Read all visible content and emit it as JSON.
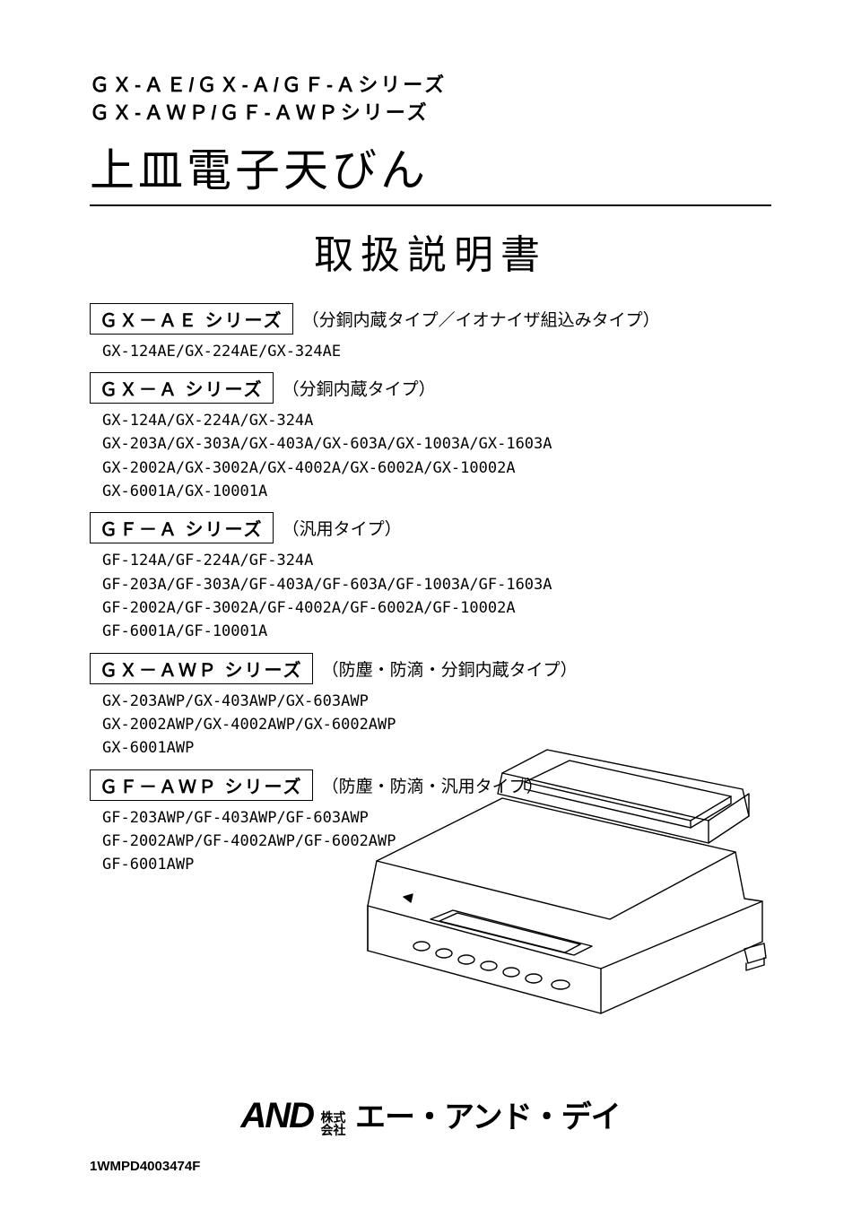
{
  "header": {
    "series_line1": "ＧＸ-ＡＥ/ＧＸ-Ａ/ＧＦ-Ａシリーズ",
    "series_line2": "ＧＸ-ＡＷＰ/ＧＦ-ＡＷＰシリーズ",
    "product_title": "上皿電子天びん",
    "manual_label": "取扱説明書"
  },
  "sections": [
    {
      "box": "ＧＸ－ＡＥ シリーズ",
      "desc": "（分銅内蔵タイプ／イオナイザ組込みタイプ）",
      "models": [
        "GX-124AE/GX-224AE/GX-324AE"
      ]
    },
    {
      "box": "ＧＸ－Ａ シリーズ",
      "desc": "（分銅内蔵タイプ）",
      "models": [
        "GX-124A/GX-224A/GX-324A",
        "GX-203A/GX-303A/GX-403A/GX-603A/GX-1003A/GX-1603A",
        "GX-2002A/GX-3002A/GX-4002A/GX-6002A/GX-10002A",
        "GX-6001A/GX-10001A"
      ]
    },
    {
      "box": "ＧＦ－Ａ シリーズ",
      "desc": "（汎用タイプ）",
      "models": [
        "GF-124A/GF-224A/GF-324A",
        "GF-203A/GF-303A/GF-403A/GF-603A/GF-1003A/GF-1603A",
        "GF-2002A/GF-3002A/GF-4002A/GF-6002A/GF-10002A",
        "GF-6001A/GF-10001A"
      ]
    },
    {
      "box": "ＧＸ－ＡＷＰ シリーズ",
      "desc": "（防塵・防滴・分銅内蔵タイプ）",
      "models": [
        "GX-203AWP/GX-403AWP/GX-603AWP",
        "GX-2002AWP/GX-4002AWP/GX-6002AWP",
        "GX-6001AWP"
      ]
    },
    {
      "box": "ＧＦ－ＡＷＰ シリーズ",
      "desc": "（防塵・防滴・汎用タイプ）",
      "models": [
        "GF-203AWP/GF-403AWP/GF-603AWP",
        "GF-2002AWP/GF-4002AWP/GF-6002AWP",
        "GF-6001AWP"
      ]
    }
  ],
  "company": {
    "mark": "AND",
    "corp_small_top": "株式",
    "corp_small_bottom": "会社",
    "name": "エー・アンド・デイ"
  },
  "doc_code": "1WMPD4003474F",
  "illustration": {
    "stroke": "#000000",
    "fill": "#ffffff",
    "line_width": 1.4
  }
}
